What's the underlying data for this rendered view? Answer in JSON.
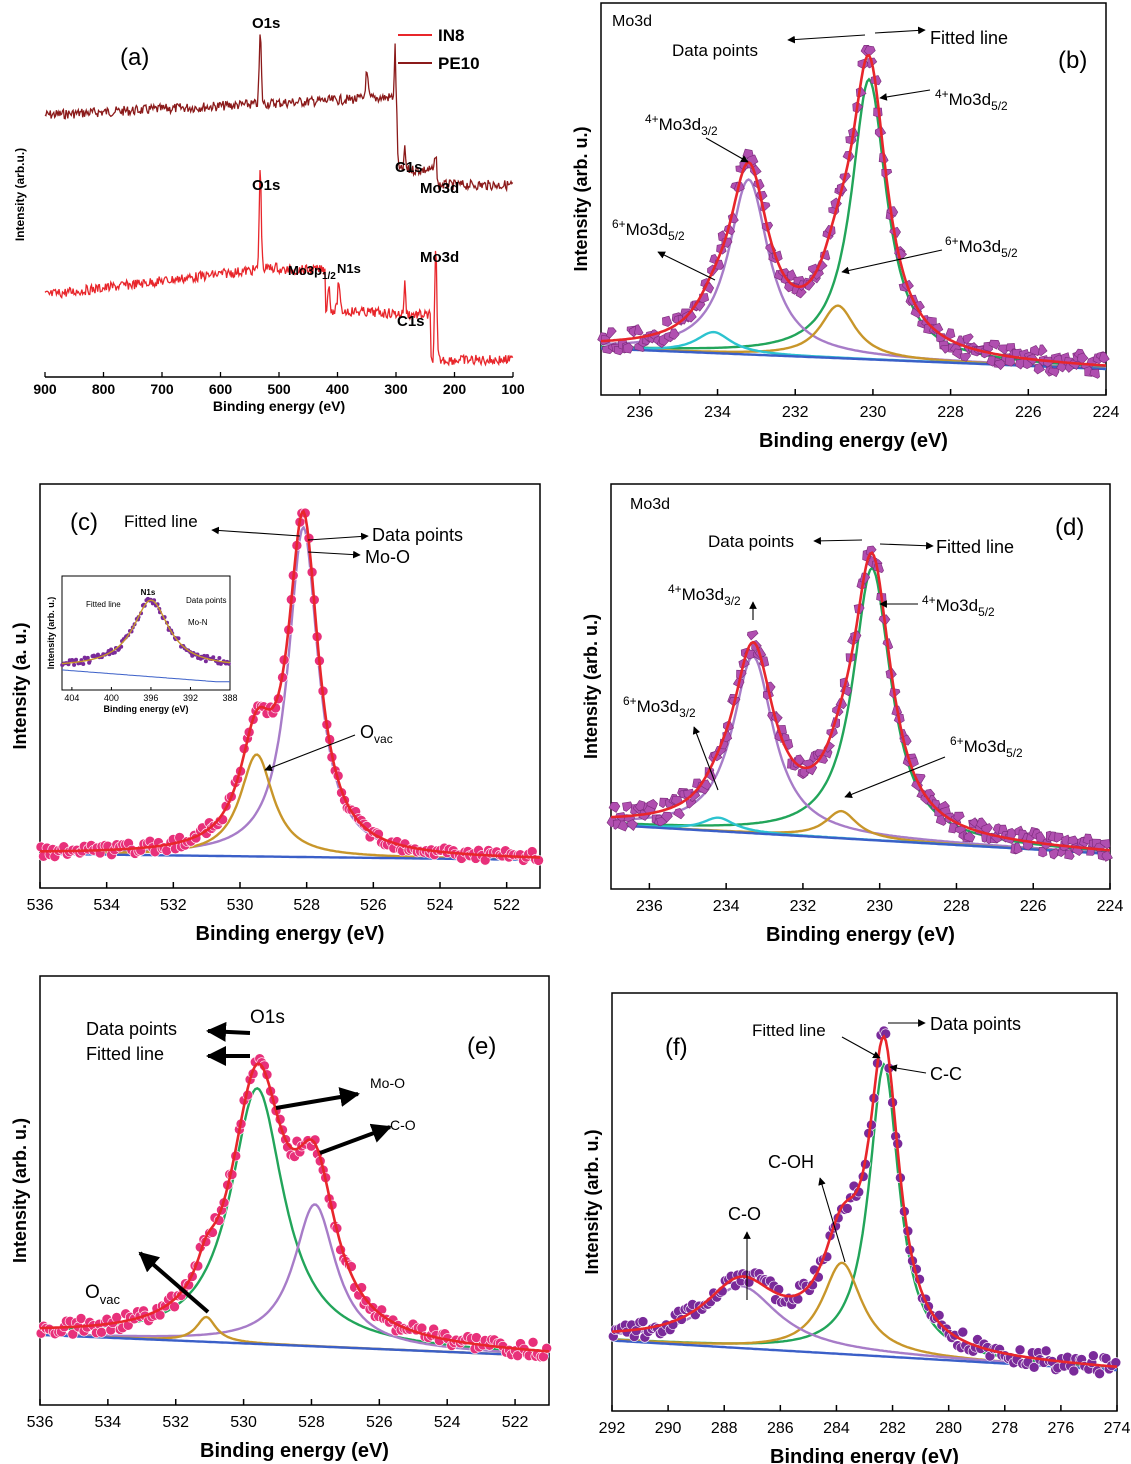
{
  "colors": {
    "in8": "#e8262b",
    "pe10": "#8b1a1a",
    "fit": "#e8262b",
    "green": "#22a55a",
    "purple": "#a77cc8",
    "gold": "#c8962a",
    "cyan": "#2cc3cf",
    "blue": "#3a5fc8",
    "magenta_pts": "#b04fb0",
    "pink_pts": "#e8307a",
    "violet_pts": "#7a2a9a"
  },
  "chart_data": [
    {
      "panel": "a",
      "type": "line",
      "panel_label": "(a)",
      "xlabel": "Binding energy (eV)",
      "ylabel": "Intensity (arb.u.)",
      "xlim": [
        900,
        100
      ],
      "xticks": [
        "900",
        "800",
        "700",
        "600",
        "500",
        "400",
        "300",
        "200",
        "100"
      ],
      "legend": [
        "IN8",
        "PE10"
      ],
      "legend_position": "top-right",
      "series": [
        {
          "name": "PE10",
          "x": [
            900,
            800,
            700,
            600,
            532,
            531,
            500,
            400,
            350,
            330,
            300,
            295,
            285,
            280,
            232,
            228,
            200,
            100
          ],
          "y": [
            0.78,
            0.8,
            0.82,
            0.83,
            0.97,
            0.84,
            0.8,
            0.77,
            0.86,
            0.77,
            0.98,
            0.72,
            0.64,
            0.59,
            0.57,
            0.54,
            0.53,
            0.53
          ]
        },
        {
          "name": "IN8",
          "x": [
            900,
            800,
            700,
            600,
            532,
            531,
            500,
            415,
            400,
            350,
            290,
            285,
            280,
            232,
            228,
            200,
            100
          ],
          "y": [
            0.27,
            0.31,
            0.36,
            0.39,
            0.66,
            0.34,
            0.3,
            0.29,
            0.27,
            0.18,
            0.16,
            0.22,
            0.15,
            0.42,
            0.07,
            0.06,
            0.06
          ]
        }
      ],
      "annotations": [
        "O1s",
        "C1s",
        "Mo3d",
        "O1s",
        "Mo3p",
        "1/2",
        "N1s",
        "C1s",
        "Mo3d"
      ]
    },
    {
      "panel": "b",
      "type": "line",
      "panel_label": "(b)",
      "title": "Mo3d",
      "xlabel": "Binding energy (eV)",
      "ylabel": "Intensity (arb. u.)",
      "xlim": [
        237,
        224
      ],
      "xticks": [
        "236",
        "234",
        "232",
        "230",
        "228",
        "226",
        "224"
      ],
      "peaks": [
        {
          "name": "4+Mo3d5/2",
          "center": 230.1,
          "height": 0.83
        },
        {
          "name": "4+Mo3d3/2",
          "center": 233.2,
          "height": 0.55
        },
        {
          "name": "6+Mo3d5/2",
          "center": 230.9,
          "height": 0.2
        },
        {
          "name": "6+Mo3d5/2",
          "center": 234.1,
          "height": 0.11
        }
      ],
      "annotations": [
        "Data points",
        "Fitted line",
        "4+",
        "Mo3d",
        "5/2",
        "4+",
        "Mo3d",
        "3/2",
        "6+",
        "Mo3d",
        "5/2",
        "6+",
        "Mo3d",
        "5/2"
      ]
    },
    {
      "panel": "c",
      "type": "line",
      "panel_label": "(c)",
      "xlabel": "Binding energy (eV)",
      "ylabel": "Intensity (a. u.)",
      "xlim": [
        536,
        521
      ],
      "xticks": [
        "536",
        "534",
        "532",
        "530",
        "528",
        "526",
        "524",
        "522"
      ],
      "peaks": [
        {
          "name": "Mo-O",
          "center": 528.1,
          "height": 0.95
        },
        {
          "name": "Ovac",
          "center": 529.5,
          "height": 0.32
        }
      ],
      "annotations": [
        "Fitted line",
        "Data points",
        "Mo-O",
        "O",
        "vac"
      ],
      "inset": {
        "title": "N1s",
        "xlabel": "Binding energy (eV)",
        "ylabel": "Intensity (arb. u.)",
        "xticks": [
          "404",
          "400",
          "396",
          "392",
          "388"
        ],
        "xlim": [
          405,
          388
        ],
        "peaks": [
          {
            "name": "Mo-N",
            "center": 396.0,
            "height": 0.8
          }
        ],
        "annotations": [
          "Fitted line",
          "Data points",
          "Mo-N"
        ]
      }
    },
    {
      "panel": "d",
      "type": "line",
      "panel_label": "(d)",
      "title": "Mo3d",
      "xlabel": "Binding energy (eV)",
      "ylabel": "Intensity (arb. u.)",
      "xlim": [
        237,
        224
      ],
      "xticks": [
        "236",
        "234",
        "232",
        "230",
        "228",
        "226",
        "224"
      ],
      "peaks": [
        {
          "name": "4+Mo3d5/2",
          "center": 230.2,
          "height": 0.78
        },
        {
          "name": "4+Mo3d3/2",
          "center": 233.3,
          "height": 0.55
        },
        {
          "name": "6+Mo3d5/2",
          "center": 231.0,
          "height": 0.1
        },
        {
          "name": "6+Mo3d3/2",
          "center": 234.2,
          "height": 0.05
        }
      ],
      "annotations": [
        "Data points",
        "Fitted line",
        "4+",
        "Mo3d",
        "5/2",
        "4+",
        "Mo3d",
        "3/2",
        "6+",
        "Mo3d",
        "3/2",
        "6+",
        "Mo3d",
        "5/2"
      ]
    },
    {
      "panel": "e",
      "type": "line",
      "panel_label": "(e)",
      "xlabel": "Binding energy (eV)",
      "ylabel": "Intensity (arb. u.)",
      "xlim": [
        536,
        521
      ],
      "xticks": [
        "536",
        "534",
        "532",
        "530",
        "528",
        "526",
        "524",
        "522"
      ],
      "peaks": [
        {
          "name": "O1s",
          "center": 529.6,
          "height": 0.8
        },
        {
          "name": "C-O",
          "center": 527.9,
          "height": 0.5
        },
        {
          "name": "Ovac",
          "center": 531.1,
          "height": 0.09
        }
      ],
      "annotations": [
        "O1s",
        "Data points",
        "Fitted line",
        "Mo-O",
        "C-O",
        "O",
        "vac"
      ]
    },
    {
      "panel": "f",
      "type": "line",
      "panel_label": "(f)",
      "xlabel": "Binding energy (eV)",
      "ylabel": "Intensity (arb. u.)",
      "xlim": [
        292,
        274
      ],
      "xticks": [
        "292",
        "290",
        "288",
        "286",
        "284",
        "282",
        "280",
        "278",
        "276",
        "274"
      ],
      "peaks": [
        {
          "name": "C-C",
          "center": 282.3,
          "height": 0.86
        },
        {
          "name": "C-OH",
          "center": 283.8,
          "height": 0.28
        },
        {
          "name": "C-O",
          "center": 287.4,
          "height": 0.19
        }
      ],
      "annotations": [
        "Fitted line",
        "Data points",
        "C-C",
        "C-OH",
        "C-O"
      ]
    }
  ]
}
